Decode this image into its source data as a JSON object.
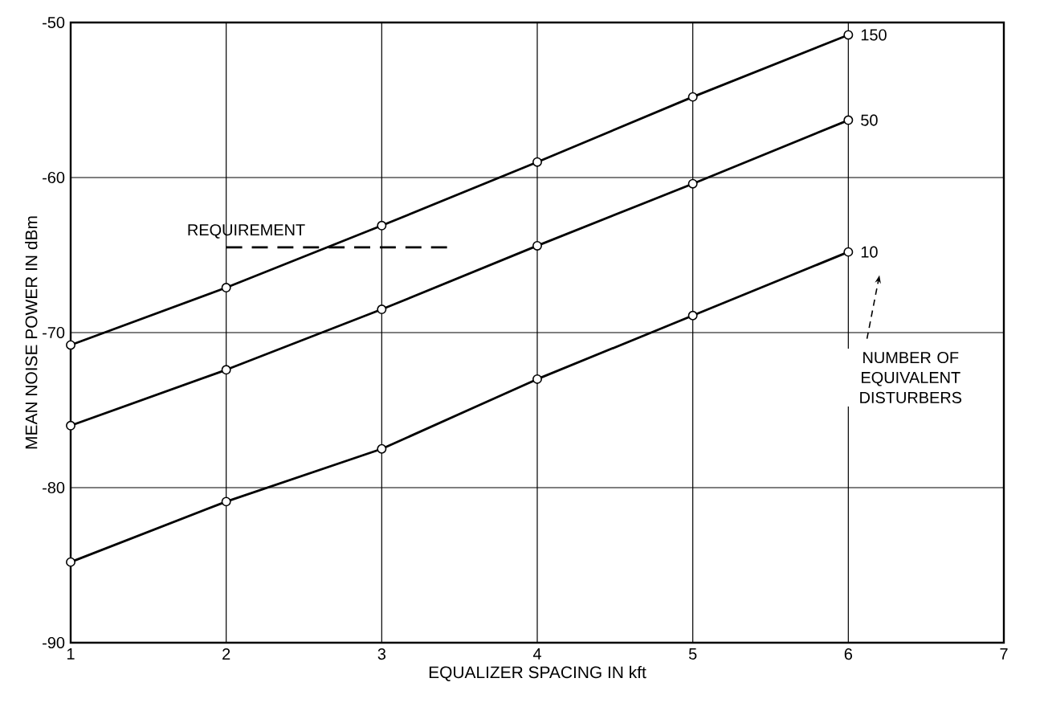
{
  "chart_data": {
    "type": "line",
    "xlabel": "EQUALIZER SPACING IN kft",
    "ylabel": "MEAN NOISE POWER IN dBm",
    "x": [
      1,
      2,
      3,
      4,
      5,
      6
    ],
    "series": [
      {
        "name": "150",
        "color": "#000000",
        "values": [
          -70.8,
          -67.1,
          -63.1,
          -59.0,
          -54.8,
          -50.8
        ]
      },
      {
        "name": "50",
        "color": "#000000",
        "values": [
          -76.0,
          -72.4,
          -68.5,
          -64.4,
          -60.4,
          -56.3
        ]
      },
      {
        "name": "10",
        "color": "#000000",
        "values": [
          -84.8,
          -80.9,
          -77.5,
          -73.0,
          -68.9,
          -64.8
        ]
      },
      {
        "name": "REQUIREMENT",
        "color": "#000000",
        "x": [
          2.0,
          3.45
        ],
        "values": [
          -64.5,
          -64.5
        ],
        "line_style": "dashed",
        "marker": "none"
      }
    ],
    "annotations": [
      "NUMBER OF EQUIVALENT DISTURBERS"
    ],
    "xlim": [
      1,
      7
    ],
    "xticks": [
      1,
      2,
      3,
      4,
      5,
      6,
      7
    ],
    "ylim": [
      -90,
      -50
    ],
    "yticks": [
      -90,
      -80,
      -70,
      -60,
      -50
    ],
    "grid": true,
    "marker": "circle",
    "line_style": "solid"
  }
}
